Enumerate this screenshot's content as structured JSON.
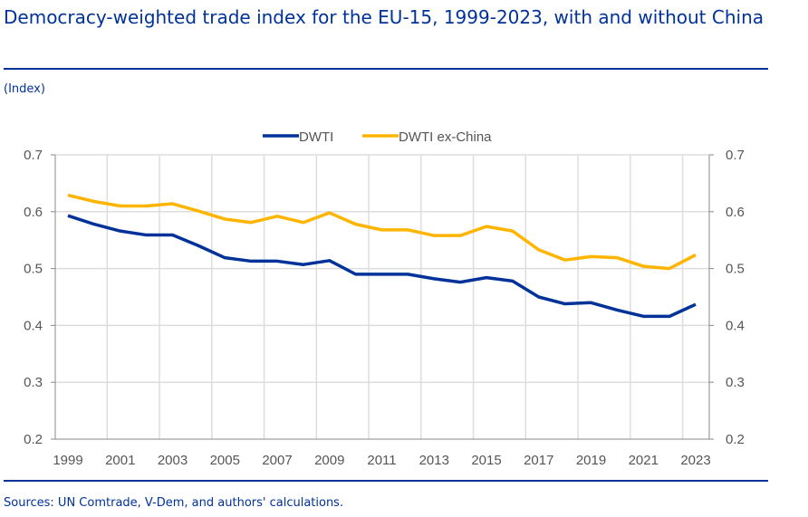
{
  "title": "Democracy-weighted trade index for the EU-15, 1999-2023, with and without China",
  "subtitle": "(Index)",
  "source": "Sources: UN Comtrade, V-Dem, and authors' calculations.",
  "chart_data": {
    "type": "line",
    "x": [
      1999,
      2000,
      2001,
      2002,
      2003,
      2004,
      2005,
      2006,
      2007,
      2008,
      2009,
      2010,
      2011,
      2012,
      2013,
      2014,
      2015,
      2016,
      2017,
      2018,
      2019,
      2020,
      2021,
      2022,
      2023
    ],
    "xticks": [
      "1999",
      "2001",
      "2003",
      "2005",
      "2007",
      "2009",
      "2011",
      "2013",
      "2015",
      "2017",
      "2019",
      "2021",
      "2023"
    ],
    "yticks": [
      "0.2",
      "0.3",
      "0.4",
      "0.5",
      "0.6",
      "0.7"
    ],
    "ylim": [
      0.2,
      0.7
    ],
    "grid": true,
    "legend": "top",
    "series": [
      {
        "name": "DWTI",
        "color": "#003299",
        "values": [
          0.593,
          0.578,
          0.566,
          0.559,
          0.559,
          0.54,
          0.519,
          0.513,
          0.513,
          0.507,
          0.514,
          0.49,
          0.49,
          0.49,
          0.482,
          0.476,
          0.484,
          0.478,
          0.45,
          0.438,
          0.44,
          0.427,
          0.416,
          0.416,
          0.437
        ]
      },
      {
        "name": "DWTI ex-China",
        "color": "#FFB400",
        "values": [
          0.629,
          0.618,
          0.61,
          0.61,
          0.614,
          0.601,
          0.587,
          0.581,
          0.592,
          0.581,
          0.598,
          0.578,
          0.568,
          0.568,
          0.558,
          0.558,
          0.574,
          0.566,
          0.533,
          0.515,
          0.521,
          0.519,
          0.504,
          0.5,
          0.524
        ]
      }
    ]
  }
}
